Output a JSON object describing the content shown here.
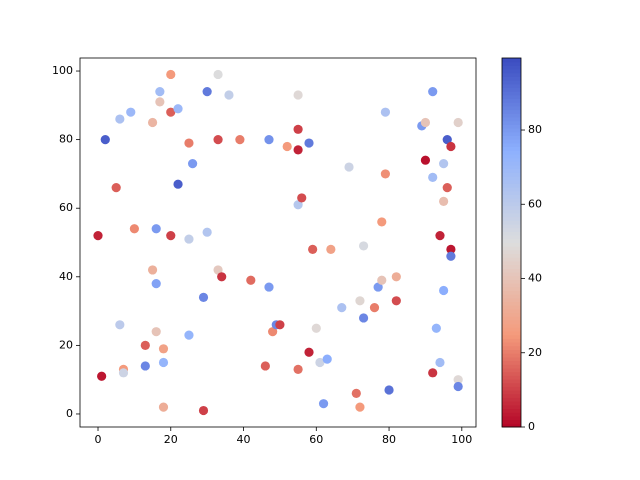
{
  "chart_data": {
    "type": "scatter",
    "colormap": "coolwarm_r",
    "x": [
      0,
      1,
      2,
      5,
      6,
      6,
      7,
      7,
      9,
      10,
      13,
      13,
      15,
      15,
      16,
      16,
      16,
      17,
      17,
      18,
      18,
      18,
      20,
      20,
      20,
      22,
      22,
      25,
      25,
      25,
      26,
      29,
      29,
      30,
      30,
      33,
      33,
      33,
      34,
      36,
      39,
      42,
      46,
      47,
      47,
      48,
      49,
      50,
      52,
      55,
      55,
      55,
      55,
      55,
      56,
      58,
      58,
      59,
      60,
      61,
      62,
      63,
      64,
      67,
      69,
      71,
      72,
      72,
      73,
      73,
      76,
      77,
      78,
      78,
      79,
      79,
      80,
      82,
      82,
      89,
      90,
      90,
      92,
      92,
      92,
      93,
      94,
      94,
      95,
      95,
      95,
      96,
      96,
      97,
      97,
      97,
      99,
      99,
      99
    ],
    "y": [
      52,
      11,
      80,
      66,
      86,
      26,
      13,
      12,
      88,
      54,
      20,
      14,
      85,
      42,
      54,
      38,
      24,
      94,
      91,
      19,
      15,
      2,
      99,
      88,
      52,
      89,
      67,
      79,
      51,
      23,
      73,
      34,
      1,
      94,
      53,
      99,
      80,
      42,
      40,
      93,
      80,
      39,
      14,
      80,
      37,
      24,
      26,
      26,
      78,
      93,
      83,
      77,
      61,
      13,
      63,
      79,
      18,
      48,
      25,
      15,
      3,
      16,
      48,
      31,
      72,
      6,
      33,
      2,
      49,
      28,
      31,
      37,
      56,
      39,
      88,
      70,
      7,
      40,
      33,
      84,
      85,
      74,
      94,
      69,
      12,
      25,
      52,
      15,
      73,
      62,
      36,
      80,
      66,
      78,
      48,
      46,
      85,
      10,
      8
    ],
    "c": [
      5,
      3,
      95,
      15,
      65,
      60,
      25,
      55,
      70,
      22,
      15,
      85,
      35,
      33,
      80,
      78,
      40,
      68,
      40,
      28,
      72,
      32,
      25,
      15,
      10,
      70,
      95,
      20,
      58,
      72,
      80,
      85,
      10,
      88,
      63,
      50,
      12,
      42,
      8,
      58,
      20,
      17,
      15,
      82,
      80,
      22,
      85,
      10,
      25,
      48,
      10,
      5,
      62,
      18,
      12,
      88,
      5,
      15,
      48,
      55,
      80,
      75,
      28,
      65,
      55,
      18,
      47,
      25,
      52,
      85,
      20,
      80,
      25,
      40,
      65,
      23,
      90,
      32,
      12,
      80,
      40,
      2,
      80,
      68,
      8,
      72,
      5,
      68,
      63,
      38,
      75,
      95,
      15,
      8,
      3,
      88,
      45,
      48,
      85
    ],
    "xlim": [
      -4.95,
      103.9
    ],
    "ylim": [
      -3.8,
      103.8
    ],
    "xticks": [
      0,
      20,
      40,
      60,
      80,
      100
    ],
    "yticks": [
      0,
      20,
      40,
      60,
      80,
      100
    ],
    "clim": [
      0,
      99.4
    ],
    "cticks": [
      0,
      20,
      40,
      60,
      80
    ]
  }
}
